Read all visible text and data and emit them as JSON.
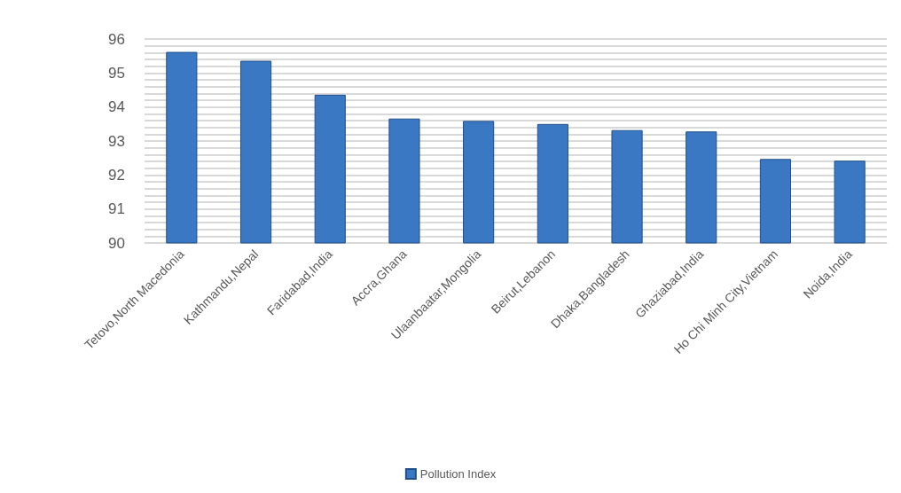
{
  "chart_data": {
    "type": "bar",
    "categories": [
      "Tetovo,North Macedonia",
      "Kathmandu,Nepal",
      "Faridabad,India",
      "Accra,Ghana",
      "Ulaanbaatar,Mongolia",
      "Beirut,Lebanon",
      "Dhaka,Bangladesh",
      "Ghaziabad,India",
      "Ho Chi Minh City,Vietnam",
      "Noida,India"
    ],
    "series": [
      {
        "name": "Pollution Index",
        "color": "#3b78c3",
        "values": [
          95.62,
          95.36,
          94.36,
          93.66,
          93.59,
          93.5,
          93.32,
          93.28,
          92.47,
          92.42
        ]
      }
    ],
    "ylim": [
      90,
      96
    ],
    "yticks": [
      90,
      91,
      92,
      93,
      94,
      95,
      96
    ],
    "grid": true,
    "legend": "bottom"
  }
}
